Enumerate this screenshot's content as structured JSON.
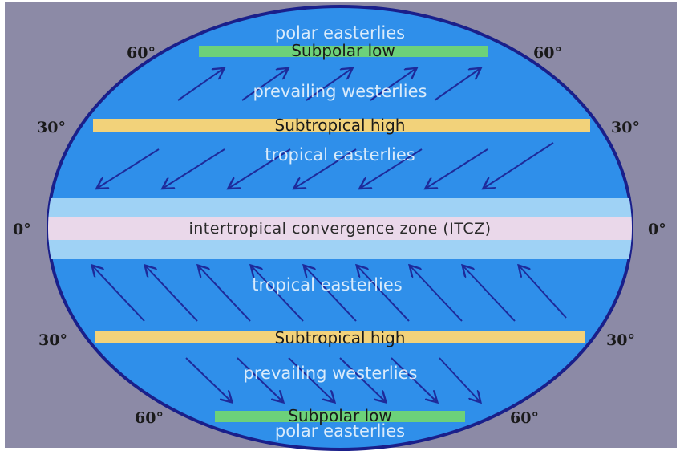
{
  "colors": {
    "background": "#8c8aa6",
    "ocean": "#2f8fea",
    "globe_outline": "#1a1f8a",
    "subpolar_low": "#6cd17a",
    "subtropical_high": "#f2d27a",
    "itcz_outer": "#9fd2f5",
    "itcz_inner": "#ead8ea",
    "arrows": "#1e2a9a"
  },
  "bands": {
    "north_subpolar_low": "Subpolar low",
    "north_subtropical_high": "Subtropical high",
    "itcz": "intertropical convergence zone (ITCZ)",
    "south_subtropical_high": "Subtropical high",
    "south_subpolar_low": "Subpolar low"
  },
  "winds": {
    "north_polar": "polar easterlies",
    "north_westerlies": "prevailing westerlies",
    "north_tropical": "tropical easterlies",
    "south_tropical": "tropical easterlies",
    "south_westerlies": "prevailing westerlies",
    "south_polar": "polar easterlies"
  },
  "latitudes": {
    "n60_left": "60°",
    "n60_right": "60°",
    "n30_left": "30°",
    "n30_right": "30°",
    "eq_left": "0°",
    "eq_right": "0°",
    "s30_left": "30°",
    "s30_right": "30°",
    "s60_left": "60°",
    "s60_right": "60°"
  }
}
